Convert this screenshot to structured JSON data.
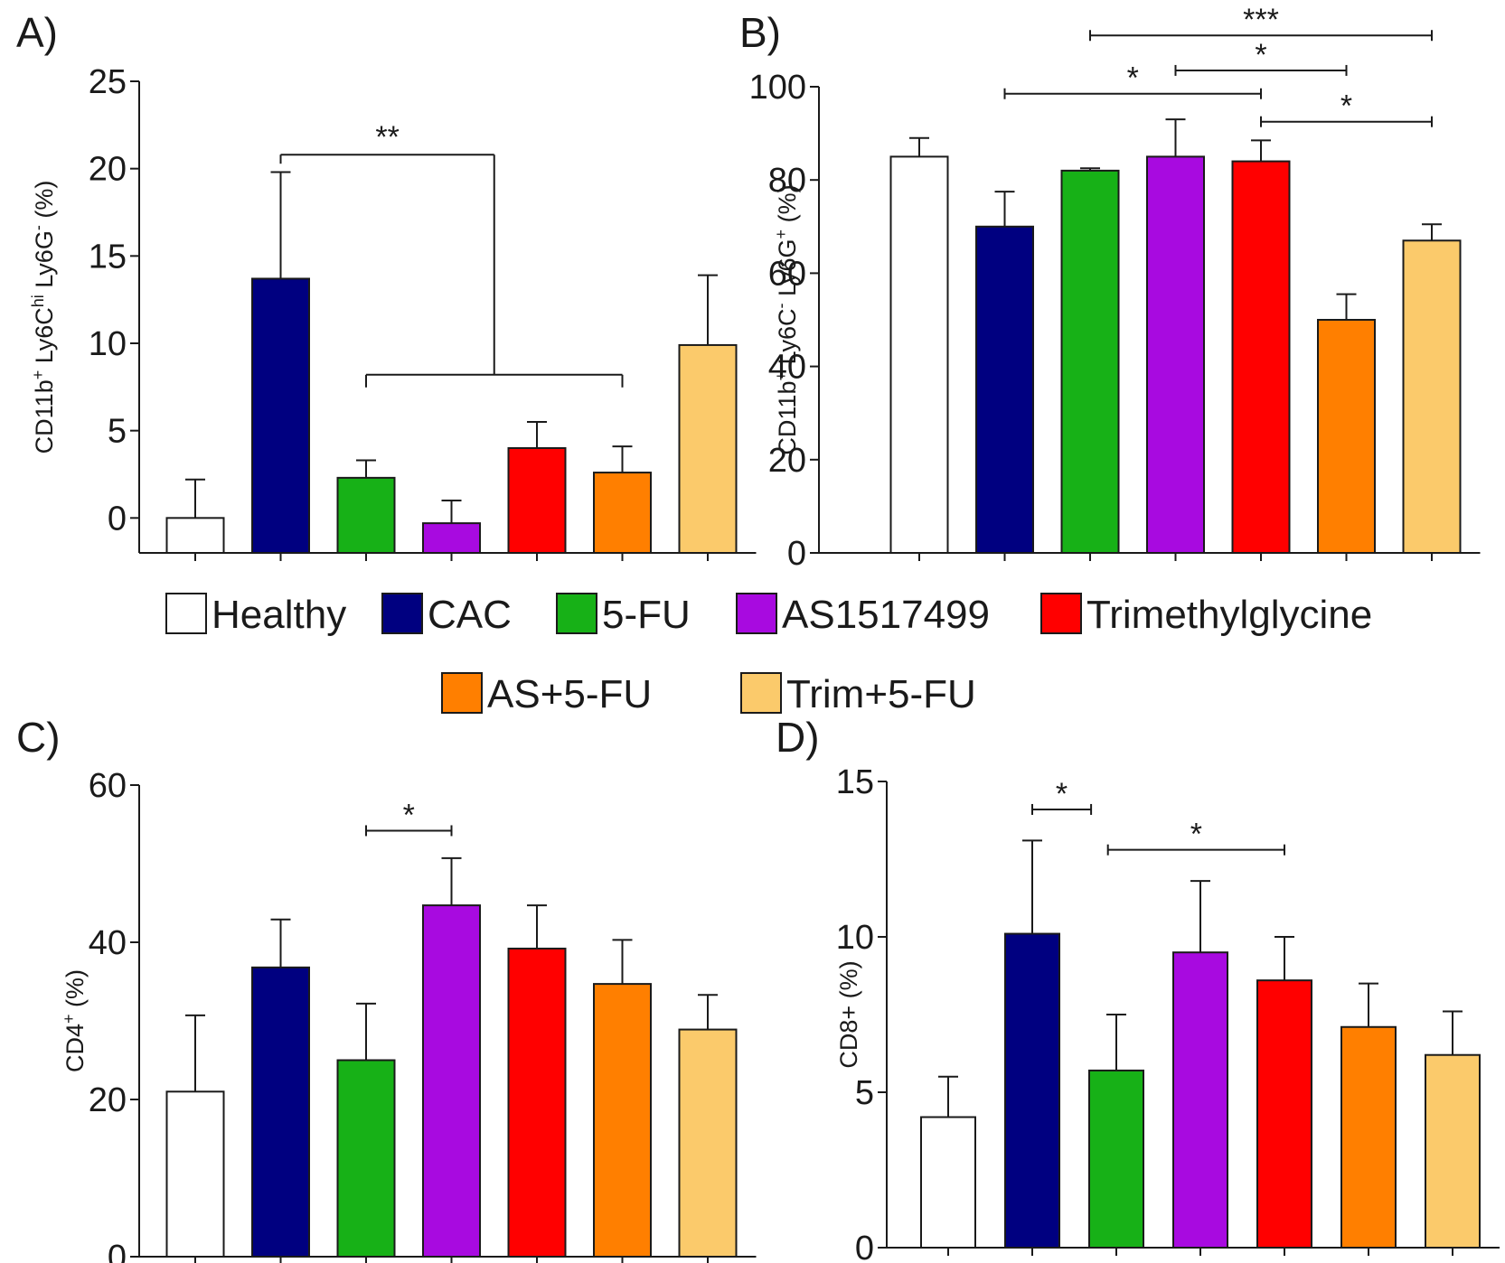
{
  "legend": [
    {
      "label": "Healthy",
      "color": "#ffffff"
    },
    {
      "label": "CAC",
      "color": "#000080"
    },
    {
      "label": "5-FU",
      "color": "#17b117"
    },
    {
      "label": "AS1517499",
      "color": "#a80ae0"
    },
    {
      "label": "Trimethylglycine",
      "color": "#ff0000"
    },
    {
      "label": "AS+5-FU",
      "color": "#ff7f00"
    },
    {
      "label": "Trim+5-FU",
      "color": "#fbca6b"
    }
  ],
  "chart_data": [
    {
      "type": "bar",
      "panel": "A)",
      "ylabel_parts": [
        {
          "t": "CD11b"
        },
        {
          "t": "+",
          "sup": true
        },
        {
          "t": " Ly6C"
        },
        {
          "t": "hi",
          "sup": true
        },
        {
          "t": " Ly6G"
        },
        {
          "t": "-",
          "sup": true
        },
        {
          "t": " (%)"
        }
      ],
      "yticks": [
        0,
        5,
        10,
        15,
        20,
        25
      ],
      "yticks_text": [
        "0",
        "5",
        "10",
        "15",
        "20",
        "25"
      ],
      "ylim": [
        -2,
        25
      ],
      "categories": [
        "Healthy",
        "CAC",
        "5-FU",
        "AS1517499",
        "Trimethylglycine",
        "AS+5-FU",
        "Trim+5-FU"
      ],
      "values": [
        0,
        13.7,
        2.3,
        -0.3,
        4.0,
        2.6,
        9.9
      ],
      "errors": [
        2.2,
        6.1,
        1.0,
        1.3,
        1.5,
        1.5,
        4.0
      ],
      "annotations": [
        {
          "type": "group",
          "single": 1,
          "group": [
            2,
            5
          ],
          "y_top": 20.8,
          "y_group": 8.2,
          "label": "**"
        }
      ]
    },
    {
      "type": "bar",
      "panel": "B)",
      "ylabel_parts": [
        {
          "t": "CD11b"
        },
        {
          "t": "+",
          "sup": true
        },
        {
          "t": " Ly6C"
        },
        {
          "t": "-",
          "sup": true
        },
        {
          "t": " Ly6G"
        },
        {
          "t": "+",
          "sup": true
        },
        {
          "t": " (%)"
        }
      ],
      "yticks": [
        0,
        20,
        40,
        60,
        80,
        100
      ],
      "yticks_text": [
        "0",
        "20",
        "40",
        "60",
        "80",
        "100"
      ],
      "ylim": [
        0,
        100
      ],
      "categories": [
        "Healthy",
        "CAC",
        "5-FU",
        "AS1517499",
        "Trimethylglycine",
        "AS+5-FU",
        "Trim+5-FU"
      ],
      "values": [
        85,
        70,
        82,
        85,
        84,
        50,
        67
      ],
      "errors": [
        4,
        7.5,
        0.5,
        8,
        4.5,
        5.5,
        3.5
      ],
      "annotations": [
        {
          "type": "bracket",
          "from": 2,
          "to": 6,
          "y": 111,
          "label": "***"
        },
        {
          "type": "bracket",
          "from": 3,
          "to": 5,
          "y": 103.5,
          "label": "*"
        },
        {
          "type": "bracket",
          "from": 1,
          "to": 4,
          "y": 98.5,
          "label": "*"
        },
        {
          "type": "bracket",
          "from": 4,
          "to": 6,
          "y": 92.5,
          "label": "*"
        }
      ]
    },
    {
      "type": "bar",
      "panel": "C)",
      "ylabel_parts": [
        {
          "t": "CD4"
        },
        {
          "t": "+",
          "sup": true
        },
        {
          "t": " (%)"
        }
      ],
      "yticks": [
        0,
        20,
        40,
        60
      ],
      "yticks_text": [
        "0",
        "20",
        "40",
        "60"
      ],
      "ylim": [
        0,
        60
      ],
      "categories": [
        "Healthy",
        "CAC",
        "5-FU",
        "AS1517499",
        "Trimethylglycine",
        "AS+5-FU",
        "Trim+5-FU"
      ],
      "values": [
        21,
        36.8,
        25,
        44.7,
        39.2,
        34.7,
        28.9
      ],
      "errors": [
        9.7,
        6.1,
        7.2,
        6,
        5.5,
        5.6,
        4.4
      ],
      "annotations": [
        {
          "type": "bracket",
          "from": 2,
          "to": 3,
          "y": 54.2,
          "label": "*"
        }
      ]
    },
    {
      "type": "bar",
      "panel": "D)",
      "ylabel_parts": [
        {
          "t": "CD8+ (%)"
        }
      ],
      "yticks": [
        0,
        5,
        10,
        15
      ],
      "yticks_text": [
        "0",
        "5",
        "10",
        "15"
      ],
      "ylim": [
        0,
        15
      ],
      "categories": [
        "Healthy",
        "CAC",
        "5-FU",
        "AS1517499",
        "Trimethylglycine",
        "AS+5-FU",
        "Trim+5-FU"
      ],
      "values": [
        4.2,
        10.1,
        5.7,
        9.5,
        8.6,
        7.1,
        6.2
      ],
      "errors": [
        1.3,
        3.0,
        1.8,
        2.3,
        1.4,
        1.4,
        1.4
      ],
      "annotations": [
        {
          "type": "bracket",
          "from": 1,
          "to": 1.7,
          "y": 14.1,
          "label": "*"
        },
        {
          "type": "bracket",
          "from": 1.9,
          "to": 4,
          "y": 12.8,
          "label": "*"
        }
      ]
    }
  ]
}
